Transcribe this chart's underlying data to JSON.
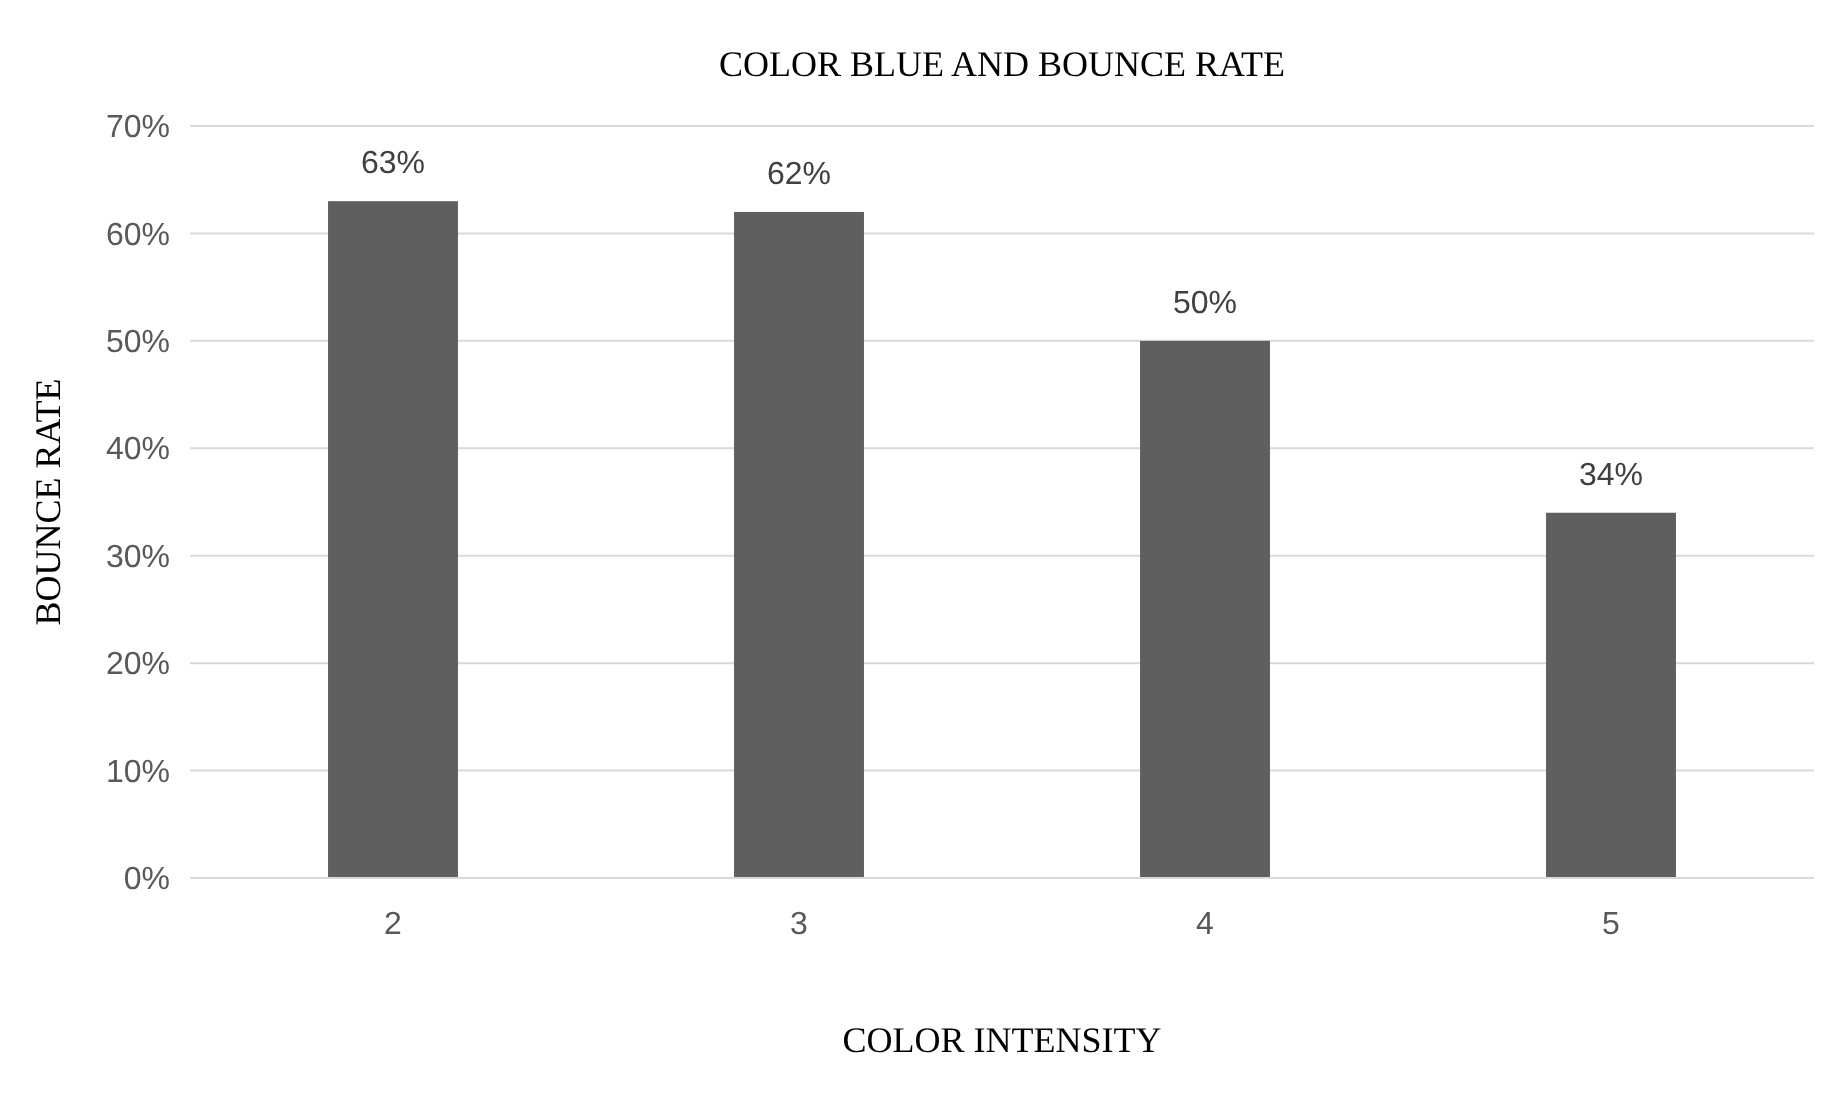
{
  "chart_data": {
    "type": "bar",
    "title": "COLOR BLUE AND BOUNCE RATE",
    "xlabel": "COLOR INTENSITY",
    "ylabel": "BOUNCE RATE",
    "categories": [
      "2",
      "3",
      "4",
      "5"
    ],
    "values": [
      63,
      62,
      50,
      34
    ],
    "value_labels": [
      "63%",
      "62%",
      "50%",
      "34%"
    ],
    "color": "#5f5f5f",
    "ylim": [
      0,
      70
    ],
    "yticks": [
      {
        "value": 0,
        "label": "0%"
      },
      {
        "value": 10,
        "label": "10%"
      },
      {
        "value": 20,
        "label": "20%"
      },
      {
        "value": 30,
        "label": "30%"
      },
      {
        "value": 40,
        "label": "40%"
      },
      {
        "value": 50,
        "label": "50%"
      },
      {
        "value": 60,
        "label": "60%"
      },
      {
        "value": 70,
        "label": "70%"
      }
    ],
    "grid": "y"
  }
}
